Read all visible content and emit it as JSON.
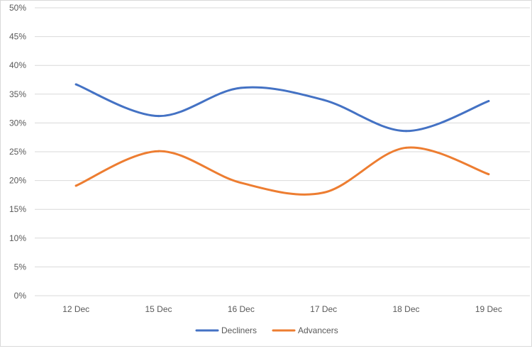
{
  "chart_data": {
    "type": "line",
    "title": "",
    "xlabel": "",
    "ylabel": "",
    "categories": [
      "12 Dec",
      "15 Dec",
      "16 Dec",
      "17 Dec",
      "18 Dec",
      "19 Dec"
    ],
    "ylim": [
      0,
      50
    ],
    "yticks": [
      "0%",
      "5%",
      "10%",
      "15%",
      "20%",
      "25%",
      "30%",
      "35%",
      "40%",
      "45%",
      "50%"
    ],
    "grid": true,
    "legend_position": "bottom",
    "series": [
      {
        "name": "Decliners",
        "color": "#4472c4",
        "values": [
          36.7,
          31.2,
          36.1,
          34.0,
          28.6,
          33.8
        ]
      },
      {
        "name": "Advancers",
        "color": "#ed7d31",
        "values": [
          19.1,
          25.1,
          19.6,
          17.9,
          25.7,
          21.1
        ]
      }
    ]
  }
}
